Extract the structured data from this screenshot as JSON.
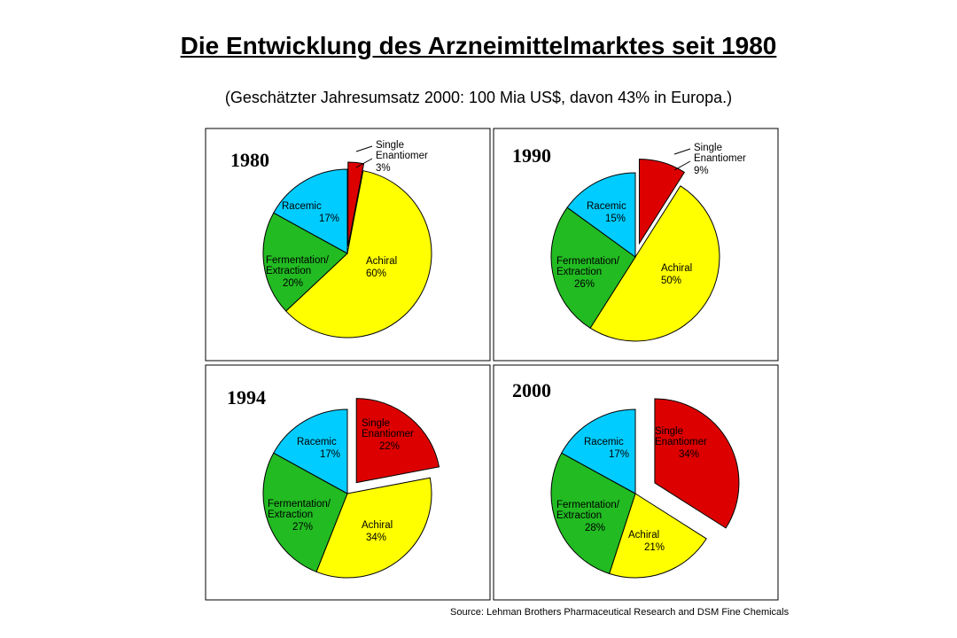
{
  "title": "Die Entwicklung des Arzneimittelmarktes seit 1980",
  "subtitle": "(Geschätzter Jahresumsatz 2000: 100 Mia US$, davon 43% in Europa.)",
  "source": "Source: Lehman Brothers Pharmaceutical Research and DSM Fine Chemicals",
  "colors": {
    "single_enantiomer": "#dd0000",
    "achiral": "#ffff00",
    "fermentation_extraction": "#22bb22",
    "racemic": "#00ccff"
  },
  "chart_data": [
    {
      "type": "pie",
      "title": "1980",
      "slices": [
        {
          "key": "single_enantiomer",
          "label_lines": [
            "Single",
            "Enantiomer"
          ],
          "pct_label": "3%",
          "value": 3,
          "exploded": true
        },
        {
          "key": "achiral",
          "label_lines": [
            "Achiral"
          ],
          "pct_label": "60%",
          "value": 60
        },
        {
          "key": "fermentation_extraction",
          "label_lines": [
            "Fermentation/",
            "Extraction"
          ],
          "pct_label": "20%",
          "value": 20
        },
        {
          "key": "racemic",
          "label_lines": [
            "Racemic"
          ],
          "pct_label": "17%",
          "value": 17
        }
      ]
    },
    {
      "type": "pie",
      "title": "1990",
      "slices": [
        {
          "key": "single_enantiomer",
          "label_lines": [
            "Single",
            "Enantiomer"
          ],
          "pct_label": "9%",
          "value": 9,
          "exploded": true
        },
        {
          "key": "achiral",
          "label_lines": [
            "Achiral"
          ],
          "pct_label": "50%",
          "value": 50
        },
        {
          "key": "fermentation_extraction",
          "label_lines": [
            "Fermentation/",
            "Extraction"
          ],
          "pct_label": "26%",
          "value": 26
        },
        {
          "key": "racemic",
          "label_lines": [
            "Racemic"
          ],
          "pct_label": "15%",
          "value": 15
        }
      ]
    },
    {
      "type": "pie",
      "title": "1994",
      "slices": [
        {
          "key": "single_enantiomer",
          "label_lines": [
            "Single",
            "Enantiomer"
          ],
          "pct_label": "22%",
          "value": 22,
          "exploded": true
        },
        {
          "key": "achiral",
          "label_lines": [
            "Achiral"
          ],
          "pct_label": "34%",
          "value": 34
        },
        {
          "key": "fermentation_extraction",
          "label_lines": [
            "Fermentation/",
            "Extraction"
          ],
          "pct_label": "27%",
          "value": 27
        },
        {
          "key": "racemic",
          "label_lines": [
            "Racemic"
          ],
          "pct_label": "17%",
          "value": 17
        }
      ]
    },
    {
      "type": "pie",
      "title": "2000",
      "slices": [
        {
          "key": "single_enantiomer",
          "label_lines": [
            "Single",
            "Enantiomer"
          ],
          "pct_label": "34%",
          "value": 34,
          "exploded": true
        },
        {
          "key": "achiral",
          "label_lines": [
            "Achiral"
          ],
          "pct_label": "21%",
          "value": 21
        },
        {
          "key": "fermentation_extraction",
          "label_lines": [
            "Fermentation/",
            "Extraction"
          ],
          "pct_label": "28%",
          "value": 28
        },
        {
          "key": "racemic",
          "label_lines": [
            "Racemic"
          ],
          "pct_label": "17%",
          "value": 17
        }
      ]
    }
  ]
}
